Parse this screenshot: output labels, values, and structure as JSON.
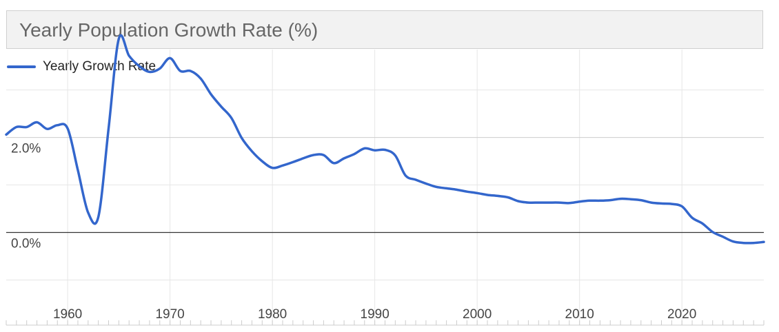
{
  "chart_data": {
    "type": "line",
    "title": "Yearly Population Growth Rate (%)",
    "xlabel": "",
    "ylabel": "",
    "x_ticks": [
      "1960",
      "1970",
      "1980",
      "1990",
      "2000",
      "2010",
      "2020"
    ],
    "y_ticks": [
      "2.0%",
      "0.0%"
    ],
    "y_tick_values": [
      2.0,
      0.0
    ],
    "xlim": [
      1954,
      2028
    ],
    "ylim": [
      -1.95,
      3.85
    ],
    "grid": true,
    "legend_position": "top-left",
    "series": [
      {
        "name": "Yearly Growth Rate",
        "color": "#3366cc",
        "x": [
          1954,
          1955,
          1956,
          1957,
          1958,
          1959,
          1960,
          1961,
          1962,
          1963,
          1964,
          1965,
          1966,
          1967,
          1968,
          1969,
          1970,
          1971,
          1972,
          1973,
          1974,
          1975,
          1976,
          1977,
          1978,
          1979,
          1980,
          1981,
          1982,
          1983,
          1984,
          1985,
          1986,
          1987,
          1988,
          1989,
          1990,
          1991,
          1992,
          1993,
          1994,
          1995,
          1996,
          1997,
          1998,
          1999,
          2000,
          2001,
          2002,
          2003,
          2004,
          2005,
          2006,
          2007,
          2008,
          2009,
          2010,
          2011,
          2012,
          2013,
          2014,
          2015,
          2016,
          2017,
          2018,
          2019,
          2020,
          2021,
          2022,
          2023,
          2024,
          2025,
          2026,
          2027,
          2028
        ],
        "values": [
          2.06,
          2.22,
          2.22,
          2.32,
          2.18,
          2.26,
          2.19,
          1.31,
          0.42,
          0.33,
          2.19,
          4.08,
          3.72,
          3.5,
          3.38,
          3.45,
          3.67,
          3.4,
          3.4,
          3.24,
          2.91,
          2.65,
          2.41,
          1.99,
          1.71,
          1.5,
          1.36,
          1.41,
          1.48,
          1.56,
          1.63,
          1.63,
          1.46,
          1.56,
          1.65,
          1.77,
          1.73,
          1.74,
          1.62,
          1.2,
          1.11,
          1.03,
          0.96,
          0.93,
          0.9,
          0.86,
          0.83,
          0.79,
          0.77,
          0.74,
          0.66,
          0.63,
          0.63,
          0.63,
          0.63,
          0.62,
          0.65,
          0.67,
          0.67,
          0.68,
          0.71,
          0.7,
          0.68,
          0.63,
          0.61,
          0.6,
          0.55,
          0.31,
          0.19,
          0.01,
          -0.09,
          -0.19,
          -0.22,
          -0.22,
          -0.2
        ]
      }
    ]
  }
}
